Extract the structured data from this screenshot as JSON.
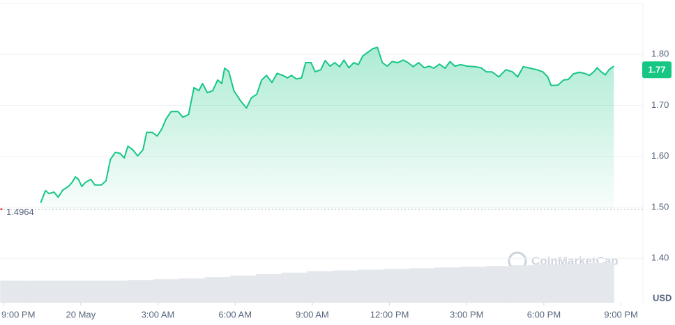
{
  "chart_data": {
    "type": "line",
    "color": "#16c784",
    "x": [
      1.44,
      1.63,
      1.76,
      1.96,
      2.12,
      2.3,
      2.52,
      2.66,
      2.79,
      2.91,
      3.04,
      3.18,
      3.39,
      3.55,
      3.8,
      3.98,
      4.15,
      4.34,
      4.53,
      4.69,
      4.83,
      5.02,
      5.21,
      5.42,
      5.56,
      5.78,
      5.97,
      6.15,
      6.32,
      6.51,
      6.78,
      6.97,
      7.19,
      7.4,
      7.59,
      7.73,
      7.92,
      8.13,
      8.32,
      8.48,
      8.59,
      8.75,
      8.95,
      9.21,
      9.44,
      9.63,
      9.84,
      10.03,
      10.22,
      10.43,
      10.63,
      10.85,
      11.03,
      11.19,
      11.38,
      11.58,
      11.74,
      11.95,
      12.11,
      12.33,
      12.5,
      12.69,
      12.87,
      13.06,
      13.23,
      13.42,
      13.61,
      13.79,
      13.96,
      14.15,
      14.34,
      14.53,
      14.72,
      14.91,
      15.1,
      15.32,
      15.53,
      15.72,
      15.92,
      16.13,
      16.35,
      16.54,
      16.72,
      16.94,
      17.16,
      17.35,
      17.54,
      17.76,
      18.03,
      18.3,
      18.56,
      18.76,
      18.98,
      19.25,
      19.52,
      19.78,
      19.98,
      20.2,
      20.47,
      20.73,
      20.96,
      21.15,
      21.28,
      21.55,
      21.77,
      21.95,
      22.15,
      22.37,
      22.58,
      22.77,
      22.96,
      23.07,
      23.23,
      23.39,
      23.53,
      23.72
    ],
    "values": [
      1.509,
      1.533,
      1.527,
      1.53,
      1.52,
      1.534,
      1.541,
      1.549,
      1.56,
      1.555,
      1.541,
      1.549,
      1.555,
      1.544,
      1.544,
      1.552,
      1.594,
      1.608,
      1.606,
      1.597,
      1.62,
      1.613,
      1.601,
      1.613,
      1.647,
      1.647,
      1.64,
      1.654,
      1.674,
      1.688,
      1.688,
      1.677,
      1.682,
      1.735,
      1.729,
      1.743,
      1.725,
      1.729,
      1.75,
      1.743,
      1.773,
      1.767,
      1.729,
      1.709,
      1.695,
      1.715,
      1.722,
      1.75,
      1.759,
      1.745,
      1.763,
      1.759,
      1.754,
      1.759,
      1.752,
      1.754,
      1.784,
      1.784,
      1.766,
      1.77,
      1.788,
      1.777,
      1.784,
      1.776,
      1.789,
      1.774,
      1.784,
      1.78,
      1.797,
      1.804,
      1.811,
      1.814,
      1.784,
      1.777,
      1.786,
      1.784,
      1.789,
      1.784,
      1.776,
      1.784,
      1.774,
      1.777,
      1.773,
      1.781,
      1.773,
      1.786,
      1.777,
      1.78,
      1.777,
      1.776,
      1.774,
      1.766,
      1.766,
      1.756,
      1.77,
      1.766,
      1.756,
      1.776,
      1.773,
      1.77,
      1.766,
      1.756,
      1.739,
      1.74,
      1.75,
      1.751,
      1.762,
      1.765,
      1.763,
      1.759,
      1.767,
      1.774,
      1.766,
      1.76,
      1.77,
      1.777
    ],
    "volume": {
      "color": "#e4e7ec",
      "values": [
        30,
        30,
        30,
        30,
        30,
        31,
        32,
        33,
        35,
        37,
        39,
        41,
        43,
        44,
        45,
        46,
        47,
        48,
        49,
        50,
        51,
        52,
        53,
        54
      ]
    },
    "xlim": [
      -0.14,
      24.85
    ],
    "xticks": [
      {
        "value": 0,
        "label": "9:00 PM"
      },
      {
        "value": 3,
        "label": "20 May"
      },
      {
        "value": 6,
        "label": "3:00 AM"
      },
      {
        "value": 9,
        "label": "6:00 AM"
      },
      {
        "value": 12,
        "label": "9:00 AM"
      },
      {
        "value": 15,
        "label": "12:00 PM"
      },
      {
        "value": 18,
        "label": "3:00 PM"
      },
      {
        "value": 21,
        "label": "6:00 PM"
      },
      {
        "value": 24,
        "label": "9:00 PM"
      }
    ],
    "ylim": [
      1.313,
      1.9
    ],
    "yticks": [
      {
        "value": 1.4,
        "label": "1.40"
      },
      {
        "value": 1.5,
        "label": "1.50"
      },
      {
        "value": 1.6,
        "label": "1.60"
      },
      {
        "value": 1.7,
        "label": "1.70"
      },
      {
        "value": 1.8,
        "label": "1.80"
      }
    ],
    "grid": true,
    "reference_value": 1.4964,
    "price_tag": 1.77,
    "currency": "USD",
    "watermark": "CoinMarketCap"
  }
}
